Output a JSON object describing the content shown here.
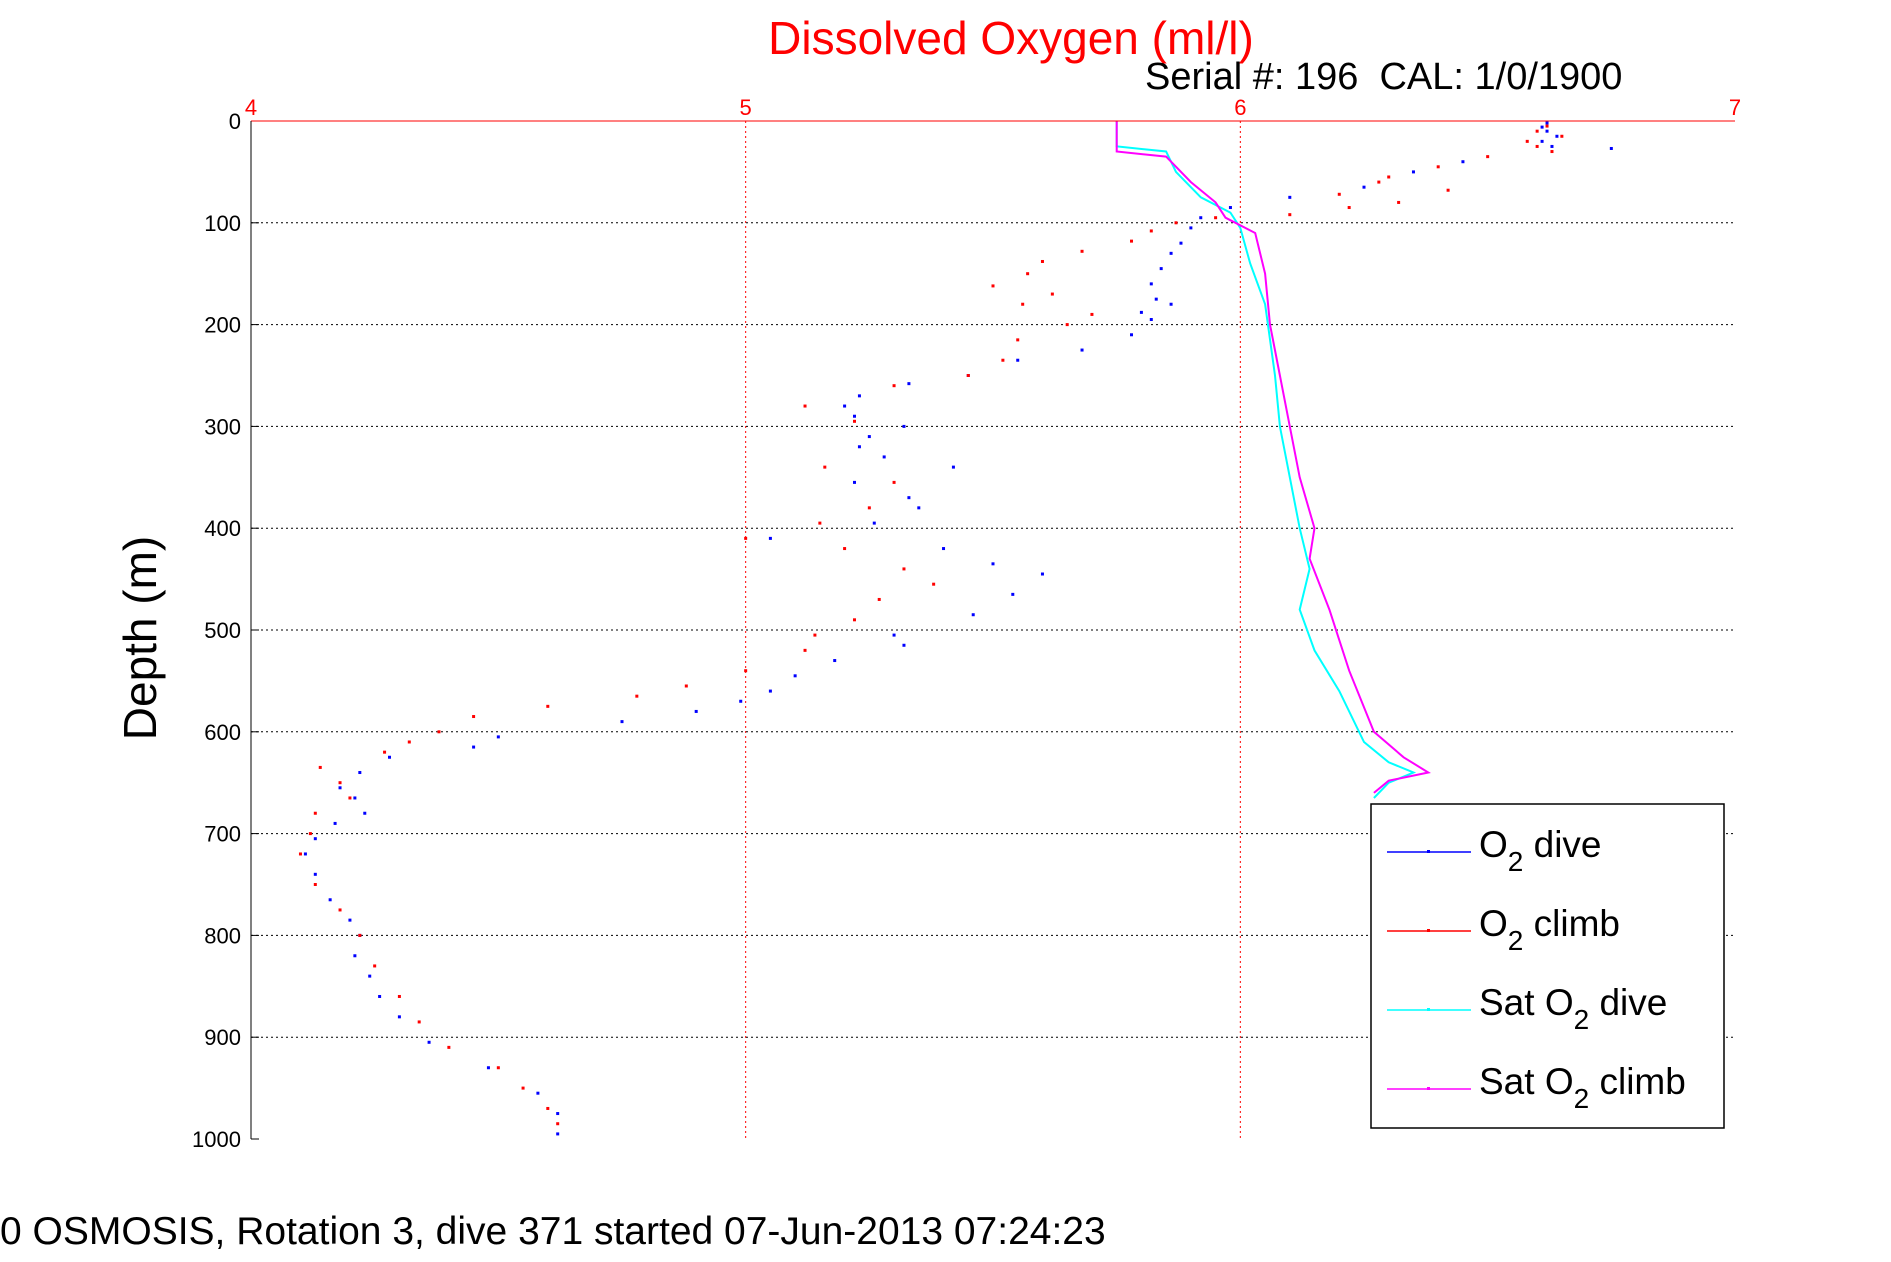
{
  "chart_data": {
    "type": "scatter",
    "title": "Dissolved Oxygen (ml/l)",
    "subtitle": "Serial #: 196  CAL: 1/0/1900",
    "xlabel": "",
    "ylabel": "Depth (m)",
    "xlim": [
      4,
      7
    ],
    "ylim": [
      0,
      1000
    ],
    "y_reversed": true,
    "x_axis_position": "top",
    "xticks": [
      "4",
      "5",
      "6",
      "7"
    ],
    "yticks": [
      "0",
      "100",
      "200",
      "300",
      "400",
      "500",
      "600",
      "700",
      "800",
      "900",
      "1000"
    ],
    "grid": true,
    "legend_position": "bottom-right",
    "colors": {
      "title": "#ff0000",
      "grid": "#ff0000",
      "dive": "#0000ff",
      "climb": "#ff0000",
      "sat_dive": "#00ffff",
      "sat_climb": "#ff00ff"
    },
    "series": [
      {
        "name": "O2 dive",
        "legend": {
          "pre": "O",
          "sub": "2",
          "post": " dive"
        },
        "color": "#0000ff",
        "style": "dots",
        "points": [
          [
            6.62,
            2
          ],
          [
            6.61,
            6
          ],
          [
            6.62,
            10
          ],
          [
            6.64,
            15
          ],
          [
            6.61,
            20
          ],
          [
            6.63,
            25
          ],
          [
            6.75,
            27
          ],
          [
            6.45,
            40
          ],
          [
            6.35,
            50
          ],
          [
            6.25,
            65
          ],
          [
            6.1,
            75
          ],
          [
            5.98,
            85
          ],
          [
            5.92,
            95
          ],
          [
            5.9,
            105
          ],
          [
            5.88,
            120
          ],
          [
            5.86,
            130
          ],
          [
            5.84,
            145
          ],
          [
            5.82,
            160
          ],
          [
            5.83,
            175
          ],
          [
            5.86,
            180
          ],
          [
            5.8,
            188
          ],
          [
            5.82,
            195
          ],
          [
            5.78,
            210
          ],
          [
            5.68,
            225
          ],
          [
            5.55,
            235
          ],
          [
            5.45,
            250
          ],
          [
            5.33,
            258
          ],
          [
            5.23,
            270
          ],
          [
            5.2,
            280
          ],
          [
            5.22,
            290
          ],
          [
            5.32,
            300
          ],
          [
            5.25,
            310
          ],
          [
            5.23,
            320
          ],
          [
            5.28,
            330
          ],
          [
            5.42,
            340
          ],
          [
            5.22,
            355
          ],
          [
            5.33,
            370
          ],
          [
            5.35,
            380
          ],
          [
            5.26,
            395
          ],
          [
            5.05,
            410
          ],
          [
            5.4,
            420
          ],
          [
            5.5,
            435
          ],
          [
            5.6,
            445
          ],
          [
            5.54,
            465
          ],
          [
            5.46,
            485
          ],
          [
            5.3,
            505
          ],
          [
            5.32,
            515
          ],
          [
            5.18,
            530
          ],
          [
            5.1,
            545
          ],
          [
            5.05,
            560
          ],
          [
            4.99,
            570
          ],
          [
            4.9,
            580
          ],
          [
            4.75,
            590
          ],
          [
            4.5,
            605
          ],
          [
            4.45,
            615
          ],
          [
            4.28,
            625
          ],
          [
            4.22,
            640
          ],
          [
            4.18,
            655
          ],
          [
            4.21,
            665
          ],
          [
            4.23,
            680
          ],
          [
            4.17,
            690
          ],
          [
            4.13,
            705
          ],
          [
            4.11,
            720
          ],
          [
            4.13,
            740
          ],
          [
            4.16,
            765
          ],
          [
            4.2,
            785
          ],
          [
            4.22,
            800
          ],
          [
            4.21,
            820
          ],
          [
            4.24,
            840
          ],
          [
            4.26,
            860
          ],
          [
            4.3,
            880
          ],
          [
            4.36,
            905
          ],
          [
            4.48,
            930
          ],
          [
            4.58,
            955
          ],
          [
            4.62,
            975
          ],
          [
            4.62,
            995
          ]
        ]
      },
      {
        "name": "O2 climb",
        "legend": {
          "pre": "O",
          "sub": "2",
          "post": " climb"
        },
        "color": "#ff0000",
        "style": "dots",
        "points": [
          [
            6.62,
            5
          ],
          [
            6.6,
            10
          ],
          [
            6.65,
            15
          ],
          [
            6.58,
            20
          ],
          [
            6.6,
            25
          ],
          [
            6.63,
            30
          ],
          [
            6.5,
            35
          ],
          [
            6.4,
            45
          ],
          [
            6.3,
            55
          ],
          [
            6.28,
            60
          ],
          [
            6.42,
            68
          ],
          [
            6.2,
            72
          ],
          [
            6.32,
            80
          ],
          [
            6.22,
            85
          ],
          [
            6.1,
            92
          ],
          [
            5.95,
            95
          ],
          [
            5.87,
            100
          ],
          [
            5.82,
            108
          ],
          [
            5.78,
            118
          ],
          [
            5.68,
            128
          ],
          [
            5.6,
            138
          ],
          [
            5.57,
            150
          ],
          [
            5.5,
            162
          ],
          [
            5.62,
            170
          ],
          [
            5.56,
            180
          ],
          [
            5.7,
            190
          ],
          [
            5.65,
            200
          ],
          [
            5.55,
            215
          ],
          [
            5.52,
            235
          ],
          [
            5.45,
            250
          ],
          [
            5.3,
            260
          ],
          [
            5.12,
            280
          ],
          [
            5.22,
            295
          ],
          [
            5.16,
            340
          ],
          [
            5.3,
            355
          ],
          [
            5.25,
            380
          ],
          [
            5.15,
            395
          ],
          [
            5.0,
            410
          ],
          [
            5.2,
            420
          ],
          [
            5.32,
            440
          ],
          [
            5.38,
            455
          ],
          [
            5.27,
            470
          ],
          [
            5.22,
            490
          ],
          [
            5.14,
            505
          ],
          [
            5.12,
            520
          ],
          [
            5.0,
            540
          ],
          [
            4.88,
            555
          ],
          [
            4.78,
            565
          ],
          [
            4.6,
            575
          ],
          [
            4.45,
            585
          ],
          [
            4.38,
            600
          ],
          [
            4.32,
            610
          ],
          [
            4.27,
            620
          ],
          [
            4.14,
            635
          ],
          [
            4.18,
            650
          ],
          [
            4.2,
            665
          ],
          [
            4.13,
            680
          ],
          [
            4.12,
            700
          ],
          [
            4.1,
            720
          ],
          [
            4.13,
            750
          ],
          [
            4.18,
            775
          ],
          [
            4.22,
            800
          ],
          [
            4.25,
            830
          ],
          [
            4.3,
            860
          ],
          [
            4.34,
            885
          ],
          [
            4.4,
            910
          ],
          [
            4.5,
            930
          ],
          [
            4.55,
            950
          ],
          [
            4.6,
            970
          ],
          [
            4.62,
            985
          ]
        ]
      },
      {
        "name": "Sat O2 dive",
        "legend": {
          "pre": "Sat O",
          "sub": "2",
          "post": " dive"
        },
        "color": "#00ffff",
        "style": "line",
        "points": [
          [
            5.75,
            0
          ],
          [
            5.75,
            25
          ],
          [
            5.85,
            30
          ],
          [
            5.87,
            50
          ],
          [
            5.92,
            75
          ],
          [
            5.98,
            90
          ],
          [
            6.0,
            105
          ],
          [
            6.02,
            140
          ],
          [
            6.05,
            180
          ],
          [
            6.07,
            250
          ],
          [
            6.08,
            300
          ],
          [
            6.1,
            350
          ],
          [
            6.12,
            400
          ],
          [
            6.14,
            440
          ],
          [
            6.12,
            480
          ],
          [
            6.15,
            520
          ],
          [
            6.2,
            560
          ],
          [
            6.25,
            610
          ],
          [
            6.3,
            630
          ],
          [
            6.35,
            640
          ],
          [
            6.3,
            650
          ],
          [
            6.27,
            665
          ]
        ]
      },
      {
        "name": "Sat O2 climb",
        "legend": {
          "pre": "Sat O",
          "sub": "2",
          "post": " climb"
        },
        "color": "#ff00ff",
        "style": "line",
        "points": [
          [
            5.75,
            0
          ],
          [
            5.75,
            30
          ],
          [
            5.85,
            35
          ],
          [
            5.9,
            60
          ],
          [
            5.95,
            80
          ],
          [
            5.97,
            95
          ],
          [
            6.03,
            110
          ],
          [
            6.05,
            150
          ],
          [
            6.06,
            200
          ],
          [
            6.08,
            250
          ],
          [
            6.1,
            300
          ],
          [
            6.12,
            350
          ],
          [
            6.15,
            400
          ],
          [
            6.14,
            430
          ],
          [
            6.18,
            480
          ],
          [
            6.22,
            540
          ],
          [
            6.27,
            600
          ],
          [
            6.33,
            625
          ],
          [
            6.38,
            640
          ],
          [
            6.3,
            648
          ],
          [
            6.27,
            660
          ]
        ]
      }
    ]
  },
  "caption": "0 OSMOSIS, Rotation 3, dive 371 started 07-Jun-2013 07:24:23"
}
